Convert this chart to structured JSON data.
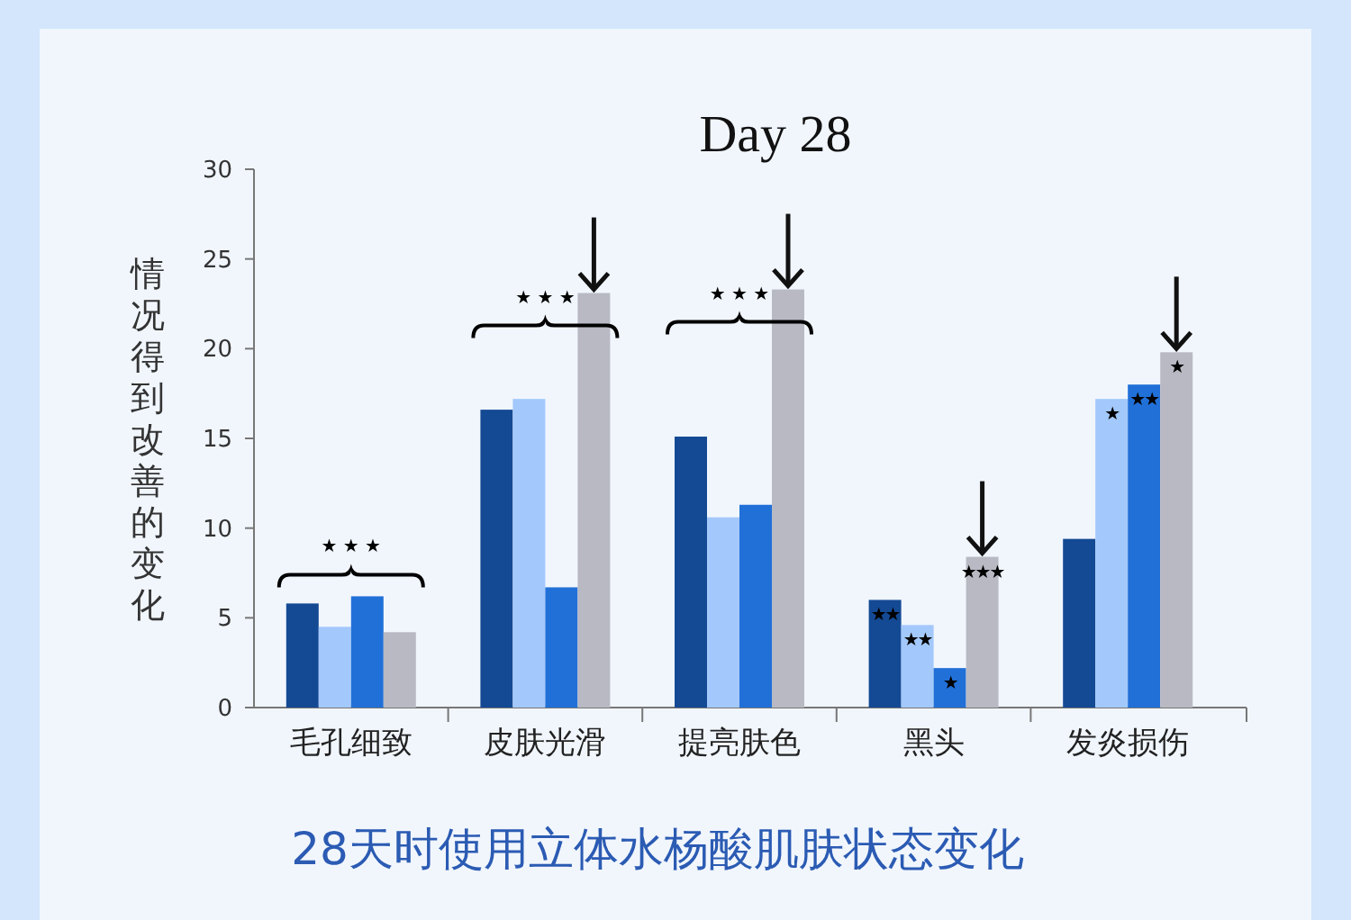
{
  "chart_data": {
    "type": "bar",
    "title": "Day 28",
    "ylabel": "情况得到改善的变化",
    "categories": [
      "毛孔细致",
      "皮肤光滑",
      "提亮肤色",
      "黑头",
      "发炎损伤"
    ],
    "series": [
      {
        "color": "#144a94",
        "values": [
          5.8,
          16.6,
          15.1,
          6.0,
          9.4
        ]
      },
      {
        "color": "#a3c8fb",
        "values": [
          4.5,
          17.2,
          10.6,
          4.6,
          17.2
        ]
      },
      {
        "color": "#2170d8",
        "values": [
          6.2,
          6.7,
          11.3,
          2.2,
          18.0
        ]
      },
      {
        "color": "#b8b9c3",
        "values": [
          4.2,
          23.1,
          23.3,
          8.4,
          19.8
        ]
      }
    ],
    "ylim": [
      0,
      30
    ],
    "yticks": [
      0,
      5,
      10,
      15,
      20,
      25,
      30
    ],
    "grid": false,
    "annotations": [
      "★ ★ ★",
      "★ ★ ★",
      "★ ★ ★",
      "★★",
      "★★",
      "★",
      "★★★",
      "★",
      "★★",
      "★",
      "28天时使用立体水杨酸肌肤状态变化"
    ]
  }
}
